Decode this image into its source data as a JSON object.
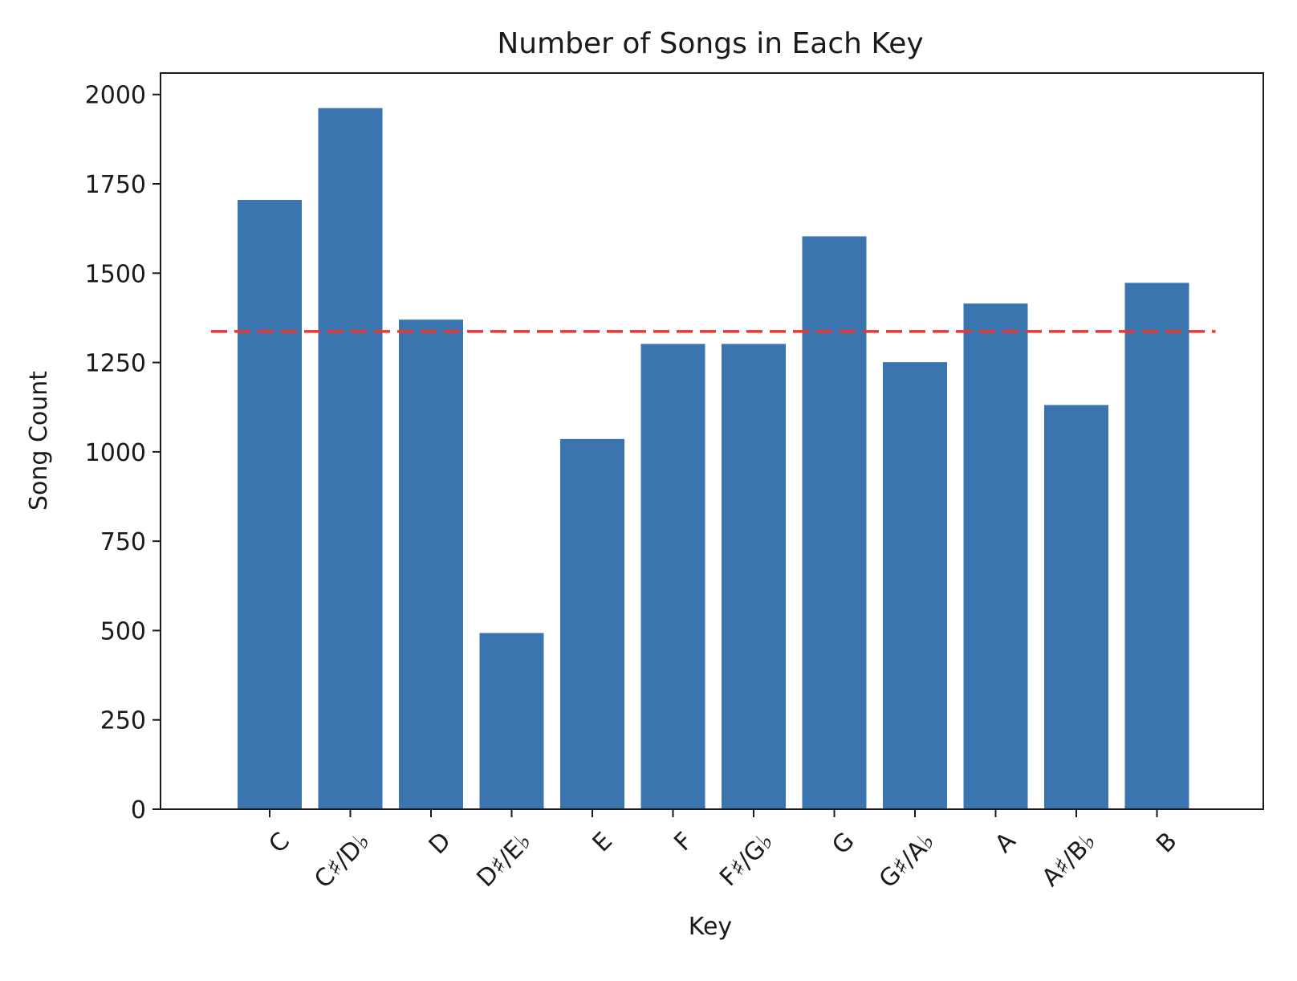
{
  "chart_data": {
    "type": "bar",
    "title": "Number of Songs in Each Key",
    "xlabel": "Key",
    "ylabel": "Song Count",
    "categories": [
      "C",
      "C♯/D♭",
      "D",
      "D♯/E♭",
      "E",
      "F",
      "F♯/G♭",
      "G",
      "G♯/A♭",
      "A",
      "A♯/B♭",
      "B"
    ],
    "values": [
      1705,
      1962,
      1370,
      493,
      1036,
      1302,
      1302,
      1603,
      1251,
      1415,
      1131,
      1473
    ],
    "reference_line": {
      "value": 1337,
      "style": "dashed"
    },
    "ylim": [
      0,
      2060
    ],
    "yticks": [
      0,
      250,
      500,
      750,
      1000,
      1250,
      1500,
      1750,
      2000
    ],
    "grid": false,
    "colors": {
      "bar": "#3b75af",
      "reference_line": "#f0332e",
      "axis": "#1a1a1a"
    }
  }
}
